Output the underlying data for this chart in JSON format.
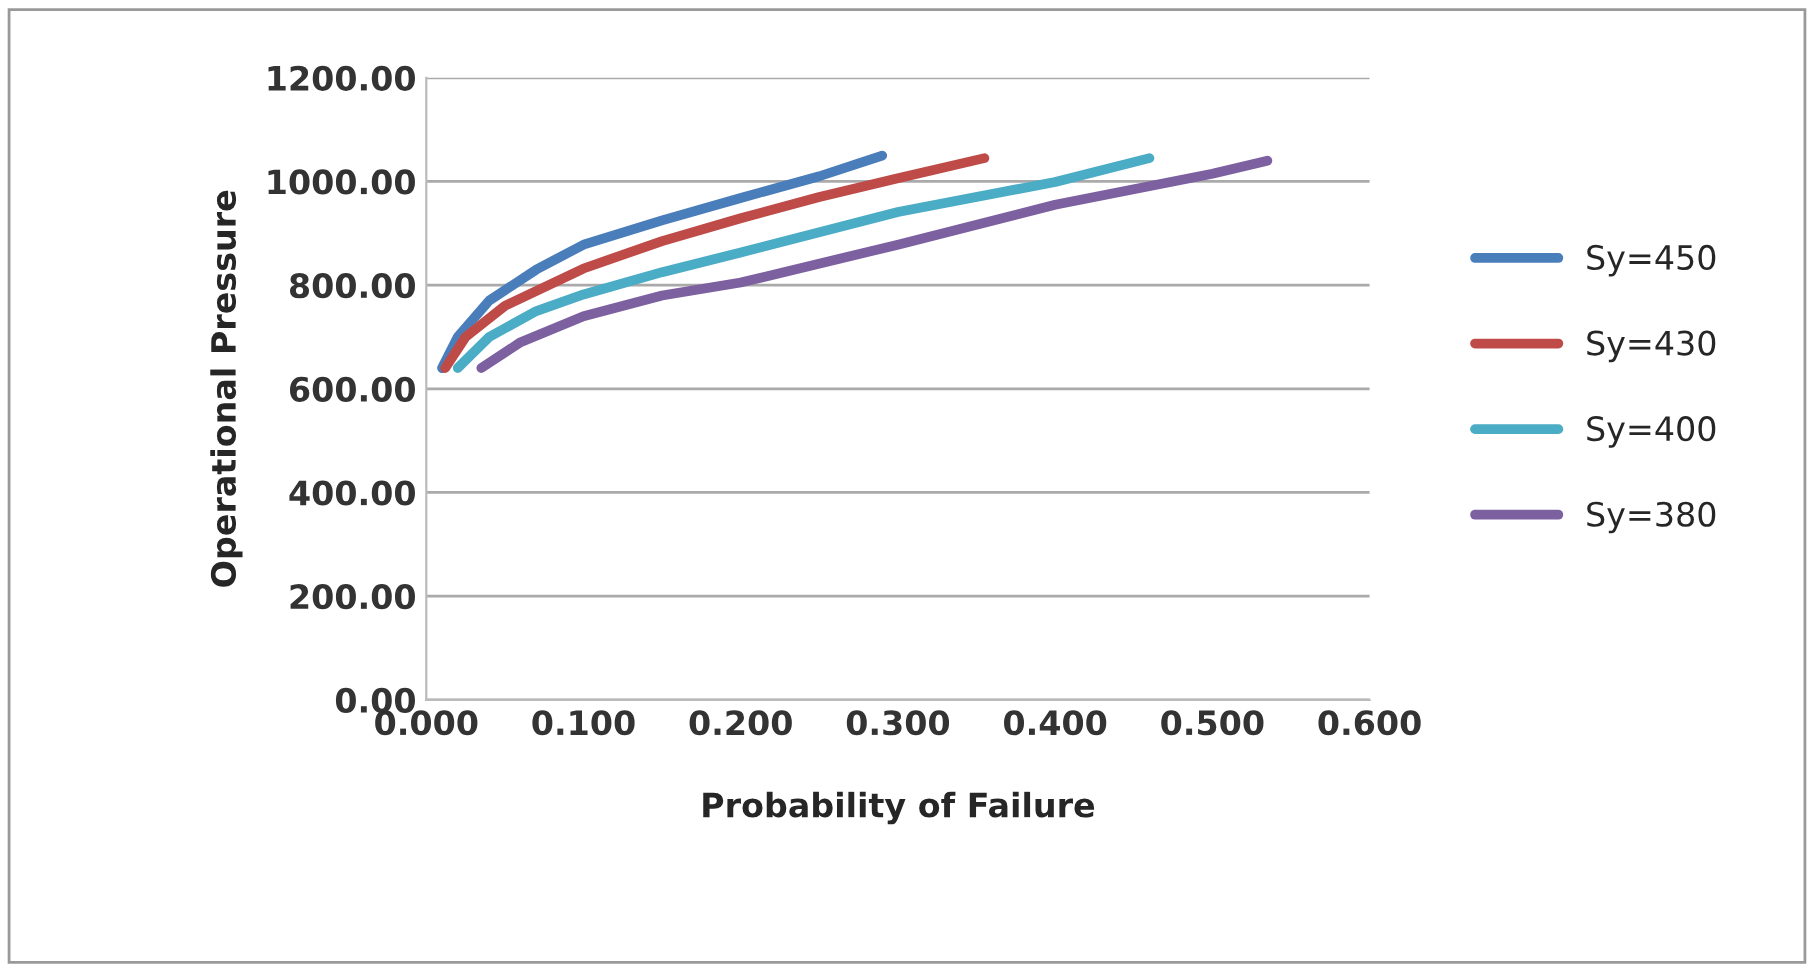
{
  "chart_data": {
    "type": "line",
    "xlabel": "Probability of Failure",
    "ylabel": "Operational Pressure",
    "xlim": [
      0,
      0.6
    ],
    "ylim": [
      0,
      1200
    ],
    "xticks": [
      {
        "value": 0,
        "label": "0.000"
      },
      {
        "value": 0.1,
        "label": "0.100"
      },
      {
        "value": 0.2,
        "label": "0.200"
      },
      {
        "value": 0.3,
        "label": "0.300"
      },
      {
        "value": 0.4,
        "label": "0.400"
      },
      {
        "value": 0.5,
        "label": "0.500"
      },
      {
        "value": 0.6,
        "label": "0.600"
      }
    ],
    "yticks": [
      {
        "value": 0,
        "label": "0.00"
      },
      {
        "value": 200,
        "label": "200.00"
      },
      {
        "value": 400,
        "label": "400.00"
      },
      {
        "value": 600,
        "label": "600.00"
      },
      {
        "value": 800,
        "label": "800.00"
      },
      {
        "value": 1000,
        "label": "1000.00"
      },
      {
        "value": 1200,
        "label": "1200.00"
      }
    ],
    "grid": "y",
    "legend": "right",
    "marker": "none",
    "line_style": "solid",
    "series": [
      {
        "name": "Sy=450",
        "color": "#4a7ebb",
        "x": [
          0.01,
          0.02,
          0.04,
          0.07,
          0.1,
          0.15,
          0.2,
          0.25,
          0.29
        ],
        "values": [
          640,
          700,
          770,
          830,
          878,
          925,
          968,
          1010,
          1050
        ]
      },
      {
        "name": "Sy=430",
        "color": "#be4b48",
        "x": [
          0.012,
          0.025,
          0.05,
          0.1,
          0.15,
          0.2,
          0.25,
          0.3,
          0.355
        ],
        "values": [
          640,
          700,
          760,
          832,
          885,
          929,
          970,
          1006,
          1045
        ]
      },
      {
        "name": "Sy=400",
        "color": "#4bacc6",
        "x": [
          0.02,
          0.04,
          0.07,
          0.1,
          0.15,
          0.2,
          0.3,
          0.4,
          0.46
        ],
        "values": [
          640,
          700,
          750,
          782,
          825,
          863,
          941,
          999,
          1045
        ]
      },
      {
        "name": "Sy=380",
        "color": "#7d60a0",
        "x": [
          0.035,
          0.06,
          0.1,
          0.15,
          0.2,
          0.3,
          0.4,
          0.5,
          0.535
        ],
        "values": [
          640,
          690,
          740,
          780,
          805,
          878,
          955,
          1015,
          1040
        ]
      }
    ]
  }
}
